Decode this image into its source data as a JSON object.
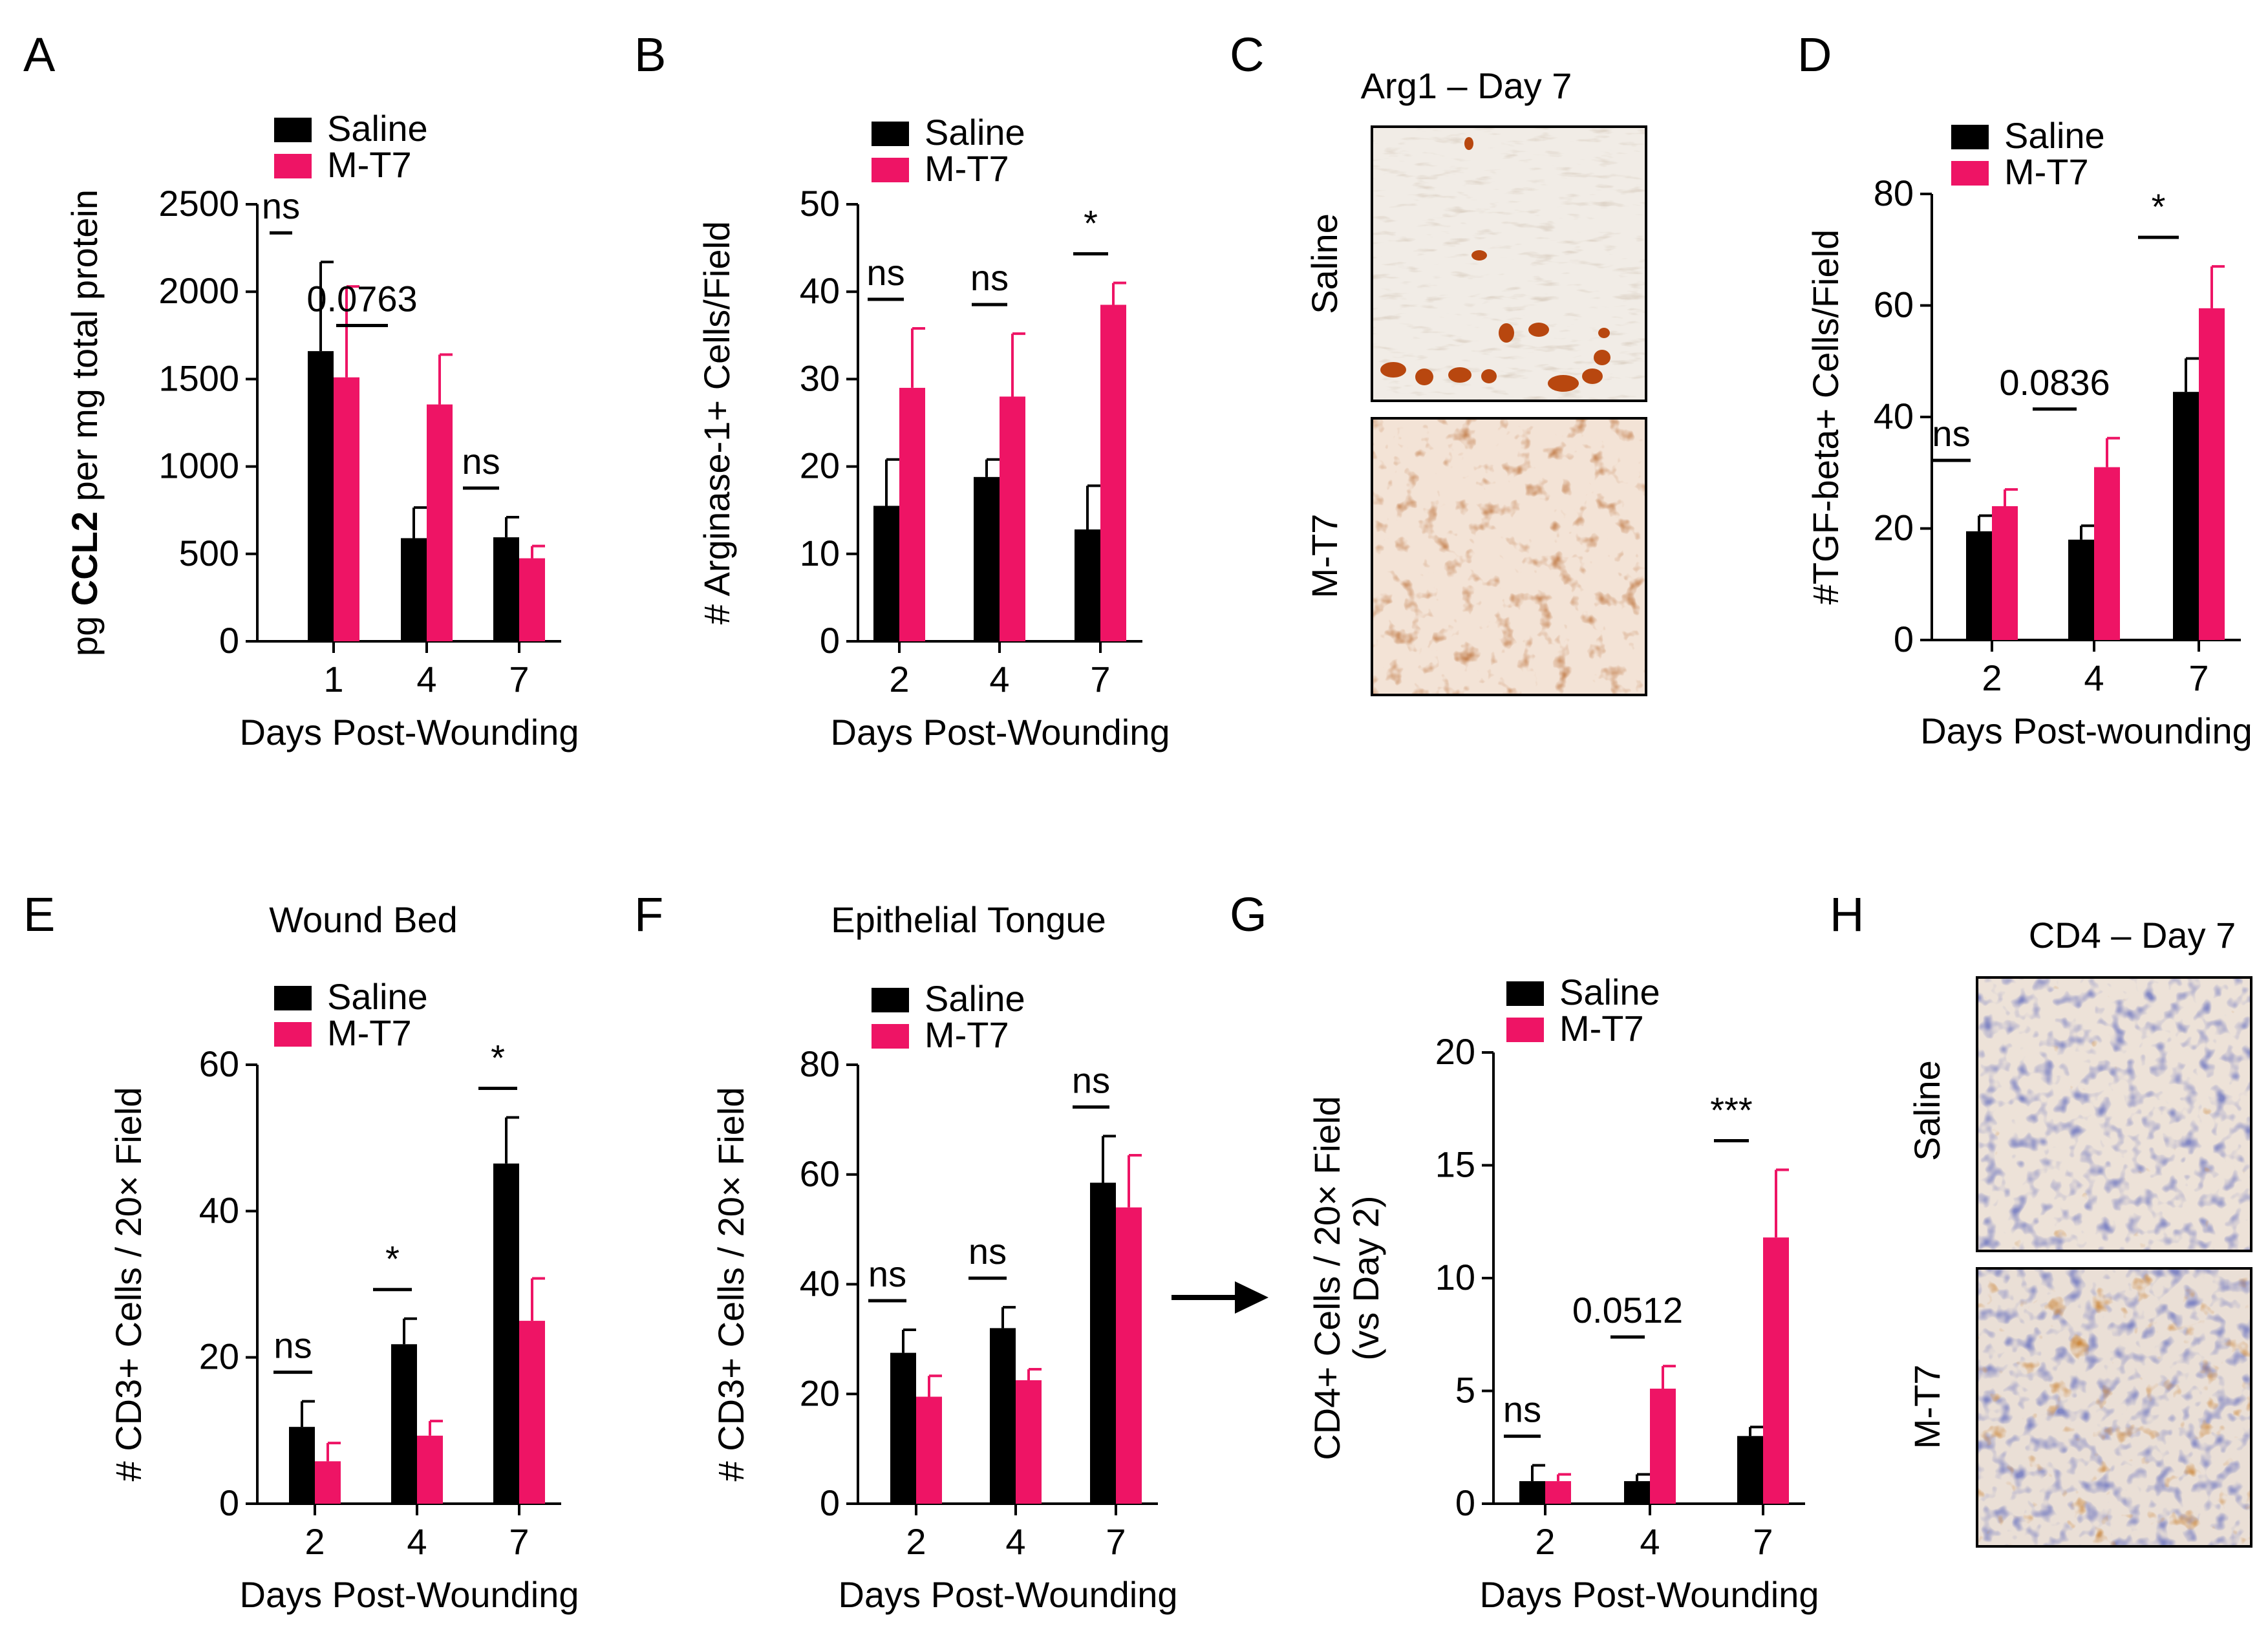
{
  "colors": {
    "saline": "#000000",
    "mt7": "#EE1465",
    "axis": "#000000"
  },
  "legend": {
    "saline": "Saline",
    "mt7": "M-T7"
  },
  "image_panels": [
    {
      "letter": "C",
      "title": "Arg1 – Day 7",
      "rows": [
        {
          "label": "Saline"
        },
        {
          "label": "M-T7"
        }
      ]
    },
    {
      "letter": "H",
      "title": "CD4 – Day 7",
      "rows": [
        {
          "label": "Saline"
        },
        {
          "label": "M-T7"
        }
      ]
    }
  ],
  "chart_data": [
    {
      "letter": "A",
      "type": "bar",
      "title": "",
      "xlabel": "Days Post-Wounding",
      "ylabel_parts": [
        "pg ",
        "CCL2",
        " per mg total protein"
      ],
      "categories": [
        "1",
        "4",
        "7"
      ],
      "ylim": [
        0,
        2500
      ],
      "yticks": [
        0,
        500,
        1000,
        1500,
        2000,
        2500
      ],
      "series": [
        {
          "name": "Saline",
          "values": [
            1660,
            590,
            595
          ],
          "errors": [
            510,
            175,
            115
          ]
        },
        {
          "name": "M-T7",
          "values": [
            1510,
            1355,
            475
          ],
          "errors": [
            520,
            285,
            70
          ]
        }
      ],
      "annotations": [
        "ns",
        "0.0763",
        "ns"
      ]
    },
    {
      "letter": "B",
      "type": "bar",
      "title": "",
      "xlabel": "Days Post-Wounding",
      "ylabel": "# Arginase-1+ Cells/Field",
      "categories": [
        "2",
        "4",
        "7"
      ],
      "ylim": [
        0,
        50
      ],
      "yticks": [
        0,
        10,
        20,
        30,
        40,
        50
      ],
      "series": [
        {
          "name": "Saline",
          "values": [
            15.5,
            18.8,
            12.8
          ],
          "errors": [
            5.3,
            2.0,
            5.0
          ]
        },
        {
          "name": "M-T7",
          "values": [
            29,
            28,
            38.5
          ],
          "errors": [
            6.8,
            7.2,
            2.5
          ]
        }
      ],
      "annotations": [
        "ns",
        "ns",
        "*"
      ]
    },
    {
      "letter": "D",
      "type": "bar",
      "title": "",
      "xlabel": "Days Post-wounding",
      "ylabel": "#TGF-beta+ Cells/Field",
      "categories": [
        "2",
        "4",
        "7"
      ],
      "ylim": [
        0,
        80
      ],
      "yticks": [
        0,
        20,
        40,
        60,
        80
      ],
      "series": [
        {
          "name": "Saline",
          "values": [
            19.5,
            18,
            44.5
          ],
          "errors": [
            2.8,
            2.5,
            6.0
          ]
        },
        {
          "name": "M-T7",
          "values": [
            24,
            31,
            59.5
          ],
          "errors": [
            3.0,
            5.2,
            7.5
          ]
        }
      ],
      "annotations": [
        "ns",
        "0.0836",
        "*"
      ]
    },
    {
      "letter": "E",
      "type": "bar",
      "title": "Wound Bed",
      "xlabel": "Days Post-Wounding",
      "ylabel": "# CD3+ Cells / 20× Field",
      "categories": [
        "2",
        "4",
        "7"
      ],
      "ylim": [
        0,
        60
      ],
      "yticks": [
        0,
        20,
        40,
        60
      ],
      "series": [
        {
          "name": "Saline",
          "values": [
            10.5,
            21.8,
            46.5
          ],
          "errors": [
            3.5,
            3.5,
            6.3
          ]
        },
        {
          "name": "M-T7",
          "values": [
            5.8,
            9.3,
            25
          ],
          "errors": [
            2.5,
            2.0,
            5.8
          ]
        }
      ],
      "annotations": [
        "ns",
        "*",
        "*"
      ]
    },
    {
      "letter": "F",
      "type": "bar",
      "title": "Epithelial Tongue",
      "xlabel": "Days Post-Wounding",
      "ylabel": "# CD3+ Cells / 20× Field",
      "categories": [
        "2",
        "4",
        "7"
      ],
      "ylim": [
        0,
        80
      ],
      "yticks": [
        0,
        20,
        40,
        60,
        80
      ],
      "series": [
        {
          "name": "Saline",
          "values": [
            27.5,
            32,
            58.5
          ],
          "errors": [
            4.2,
            3.8,
            8.5
          ]
        },
        {
          "name": "M-T7",
          "values": [
            19.5,
            22.5,
            54
          ],
          "errors": [
            3.8,
            2.0,
            9.5
          ]
        }
      ],
      "annotations": [
        "ns",
        "ns",
        "ns"
      ]
    },
    {
      "letter": "G",
      "type": "bar",
      "title": "",
      "xlabel": "Days Post-Wounding",
      "ylabel_lines": [
        "CD4+ Cells / 20× Field",
        "(vs Day 2)"
      ],
      "categories": [
        "2",
        "4",
        "7"
      ],
      "ylim": [
        0,
        20
      ],
      "yticks": [
        0,
        5,
        10,
        15,
        20
      ],
      "series": [
        {
          "name": "Saline",
          "values": [
            1.0,
            1.0,
            3.0
          ],
          "errors": [
            0.7,
            0.3,
            0.4
          ]
        },
        {
          "name": "M-T7",
          "values": [
            1.0,
            5.1,
            11.8
          ],
          "errors": [
            0.3,
            1.0,
            3.0
          ]
        }
      ],
      "annotations": [
        "ns",
        "0.0512",
        "***"
      ]
    }
  ]
}
